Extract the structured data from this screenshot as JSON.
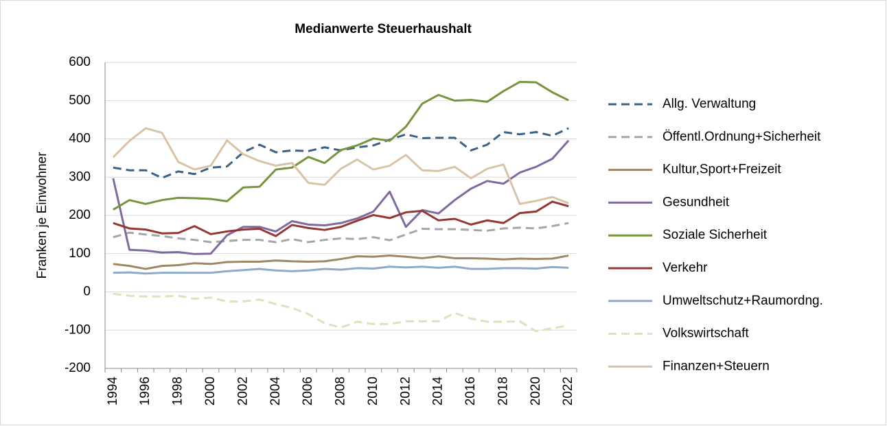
{
  "chart_data": {
    "type": "line",
    "title": "Medianwerte Steuerhaushalt",
    "y_label": "Franken je Einwohner",
    "categories": [
      "1994",
      null,
      "1996",
      null,
      "1998",
      null,
      "2000",
      null,
      "2002",
      null,
      "2004",
      null,
      "2006",
      null,
      "2008",
      null,
      "2010",
      null,
      "2012",
      null,
      "2014",
      null,
      "2016",
      null,
      "2018",
      null,
      "2020",
      null,
      "2022"
    ],
    "ylim": [
      -200,
      600
    ],
    "yticks": [
      -200,
      -100,
      0,
      100,
      200,
      300,
      400,
      500,
      600
    ],
    "grid": true,
    "series": [
      {
        "name": "Allg. Verwaltung",
        "color": "#3b6185",
        "dashed": true,
        "values": [
          325,
          318,
          318,
          298,
          315,
          308,
          325,
          328,
          365,
          385,
          365,
          370,
          368,
          378,
          370,
          378,
          383,
          398,
          412,
          402,
          403,
          403,
          370,
          385,
          418,
          412,
          418,
          408,
          428
        ]
      },
      {
        "name": "Öffentl.Ordnung+Sicherheit",
        "color": "#a6a6a6",
        "dashed": true,
        "values": [
          143,
          155,
          150,
          146,
          140,
          136,
          130,
          133,
          136,
          136,
          130,
          138,
          130,
          136,
          140,
          138,
          143,
          135,
          150,
          165,
          164,
          164,
          162,
          160,
          166,
          168,
          166,
          172,
          180
        ]
      },
      {
        "name": "Kultur,Sport+Freizeit",
        "color": "#9e8763",
        "dashed": false,
        "values": [
          73,
          68,
          60,
          68,
          70,
          75,
          73,
          78,
          79,
          79,
          82,
          80,
          79,
          80,
          86,
          93,
          92,
          95,
          92,
          88,
          93,
          88,
          88,
          87,
          85,
          87,
          86,
          87,
          95
        ]
      },
      {
        "name": "Gesundheit",
        "color": "#7f6a9e",
        "dashed": false,
        "values": [
          297,
          110,
          108,
          103,
          104,
          99,
          100,
          148,
          170,
          170,
          158,
          185,
          176,
          174,
          180,
          192,
          210,
          262,
          170,
          214,
          205,
          240,
          270,
          290,
          283,
          312,
          327,
          348,
          396
        ]
      },
      {
        "name": "Soziale Sicherheit",
        "color": "#77933c",
        "dashed": false,
        "values": [
          215,
          240,
          230,
          240,
          246,
          245,
          243,
          237,
          273,
          275,
          320,
          325,
          353,
          337,
          371,
          383,
          401,
          395,
          432,
          492,
          515,
          500,
          502,
          497,
          525,
          549,
          548,
          522,
          501
        ]
      },
      {
        "name": "Verkehr",
        "color": "#953735",
        "dashed": false,
        "values": [
          180,
          166,
          163,
          153,
          154,
          172,
          151,
          158,
          163,
          165,
          146,
          175,
          167,
          162,
          170,
          186,
          201,
          193,
          208,
          212,
          187,
          191,
          176,
          187,
          180,
          206,
          210,
          236,
          224
        ]
      },
      {
        "name": "Umweltschutz+Raumordng.",
        "color": "#8eaacb",
        "dashed": false,
        "values": [
          50,
          51,
          48,
          50,
          50,
          50,
          50,
          54,
          57,
          60,
          56,
          54,
          56,
          60,
          58,
          62,
          61,
          66,
          64,
          66,
          63,
          66,
          60,
          60,
          62,
          62,
          61,
          65,
          63
        ]
      },
      {
        "name": "Volkswirtschaft",
        "color": "#d7e4bd",
        "dashed": true,
        "values": [
          -5,
          -10,
          -12,
          -12,
          -10,
          -18,
          -15,
          -25,
          -25,
          -20,
          -32,
          -42,
          -58,
          -82,
          -93,
          -78,
          -84,
          -84,
          -77,
          -77,
          -77,
          -55,
          -70,
          -78,
          -78,
          -77,
          -103,
          -95,
          -88
        ]
      },
      {
        "name": "Finanzen+Steuern",
        "color": "#d8c3a6",
        "dashed": false,
        "values": [
          352,
          395,
          428,
          416,
          340,
          320,
          330,
          396,
          360,
          342,
          330,
          337,
          285,
          280,
          322,
          346,
          320,
          330,
          358,
          318,
          316,
          327,
          297,
          322,
          333,
          230,
          238,
          248,
          232
        ]
      }
    ]
  }
}
